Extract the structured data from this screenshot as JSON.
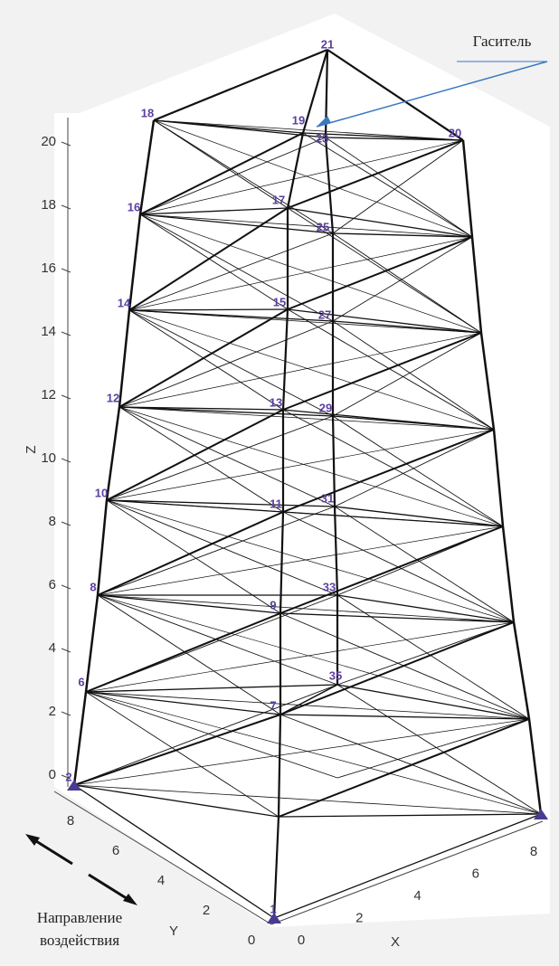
{
  "annotations": {
    "damper": "Гаситель",
    "direction_line1": "Направление",
    "direction_line2": "воздействия"
  },
  "axes": {
    "z_label": "Z",
    "y_label": "Y",
    "x_label": "X",
    "z_ticks": [
      0,
      2,
      4,
      6,
      8,
      10,
      12,
      14,
      16,
      18,
      20
    ],
    "y_ticks": [
      0,
      2,
      4,
      6,
      8
    ],
    "x_ticks": [
      0,
      2,
      4,
      6,
      8
    ]
  },
  "nodes": [
    {
      "label": "21"
    },
    {
      "label": "18"
    },
    {
      "label": "19"
    },
    {
      "label": "23"
    },
    {
      "label": "20"
    },
    {
      "label": "16"
    },
    {
      "label": "17"
    },
    {
      "label": "25"
    },
    {
      "label": "14"
    },
    {
      "label": "15"
    },
    {
      "label": "27"
    },
    {
      "label": "12"
    },
    {
      "label": "13"
    },
    {
      "label": "29"
    },
    {
      "label": "10"
    },
    {
      "label": "11"
    },
    {
      "label": "31"
    },
    {
      "label": "8"
    },
    {
      "label": "9"
    },
    {
      "label": "33"
    },
    {
      "label": "6"
    },
    {
      "label": "7"
    },
    {
      "label": "35"
    },
    {
      "label": "2"
    },
    {
      "label": "1"
    }
  ]
}
